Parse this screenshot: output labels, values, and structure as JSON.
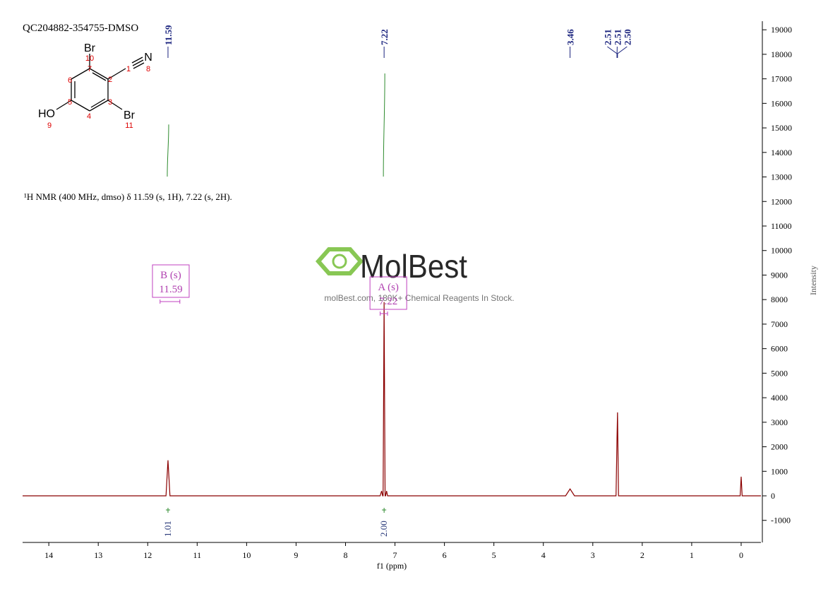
{
  "chart_data": {
    "type": "line",
    "title": "QC204882-354755-DMSO",
    "subtitle": "¹H NMR (400 MHz, dmso) δ 11.59 (s, 1H), 7.22 (s, 2H).",
    "x_label": "f1 (ppm)",
    "y_label": "Intensity",
    "xlim": [
      14.53,
      -0.4
    ],
    "ylim": [
      -1900,
      19350
    ],
    "xticks": [
      14,
      13,
      12,
      11,
      10,
      9,
      8,
      7,
      6,
      5,
      4,
      3,
      2,
      1,
      0
    ],
    "yticks": [
      -1000,
      0,
      1000,
      2000,
      3000,
      4000,
      5000,
      6000,
      7000,
      8000,
      9000,
      10000,
      11000,
      12000,
      13000,
      14000,
      15000,
      16000,
      17000,
      18000,
      19000
    ],
    "color": "#8b0000",
    "x": [
      14.53,
      11.63,
      11.59,
      11.55,
      7.3,
      7.27,
      7.25,
      7.24,
      7.22,
      7.2,
      7.19,
      7.17,
      7.15,
      3.55,
      3.46,
      3.37,
      2.53,
      2.51,
      2.5,
      2.48,
      0.02,
      0,
      -0.02,
      -0.4
    ],
    "values": [
      0,
      0,
      1450,
      0,
      0,
      200,
      0,
      0,
      7900,
      0,
      0,
      200,
      0,
      0,
      280,
      0,
      0,
      2400,
      3400,
      0,
      0,
      780,
      0,
      0
    ],
    "peak_labels": [
      11.59,
      7.22,
      3.46,
      2.51,
      2.51,
      {
        "value": 2.5,
        "label": "2.50"
      }
    ],
    "integrals": {
      "x": [
        11.59,
        7.22
      ],
      "values": [
        1.01,
        2
      ],
      "value_labels": [
        "1.01",
        "2.00"
      ],
      "color": "#2e8b2e"
    },
    "multiplets": [
      {
        "letter": "B (s)",
        "shift": 11.59,
        "range": [
          11.75,
          11.35
        ]
      },
      {
        "letter": "A (s)",
        "shift": 7.22,
        "range": [
          7.3,
          7.15
        ]
      }
    ],
    "watermark": {
      "brand": "MolBest",
      "tagline": "molBest.com, 180K+ Chemical Reagents In Stock."
    },
    "structure": {
      "labels": [
        "Br",
        "10",
        "7",
        "1",
        "N",
        "8",
        "6",
        "2",
        "HO",
        "5",
        "3",
        "Br",
        "9",
        "4",
        "11"
      ]
    }
  }
}
